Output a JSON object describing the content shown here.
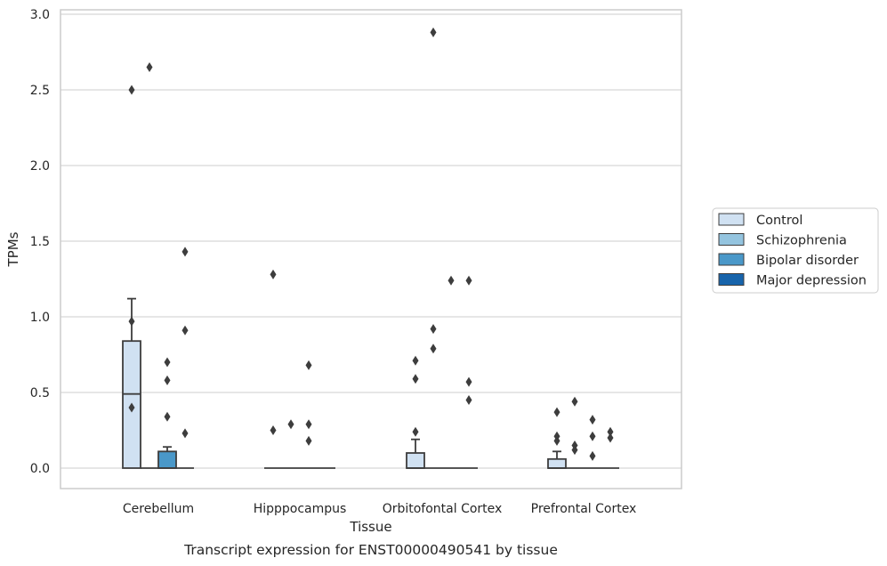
{
  "chart_data": {
    "type": "boxplot",
    "title": "",
    "caption": "Transcript expression for ENST00000490541 by tissue",
    "xlabel": "Tissue",
    "ylabel": "TPMs",
    "ylim": [
      -0.14,
      3.03
    ],
    "yticks": [
      0.0,
      0.5,
      1.0,
      1.5,
      2.0,
      2.5,
      3.0
    ],
    "ytick_labels": [
      "0.0",
      "0.5",
      "1.0",
      "1.5",
      "2.0",
      "2.5",
      "3.0"
    ],
    "grid": "horizontal",
    "legend_position": "right",
    "categories": [
      "Cerebellum",
      "Hipppocampus",
      "Orbitofontal Cortex",
      "Prefrontal Cortex"
    ],
    "series": [
      {
        "name": "Control",
        "color": "#d0e1f2",
        "boxes": [
          {
            "q1": 0.0,
            "median": 0.49,
            "q3": 0.84,
            "whisker_low": 0.0,
            "whisker_high": 1.12,
            "outliers": [
              2.5,
              0.97,
              0.4
            ]
          },
          {
            "q1": 0.0,
            "median": 0.0,
            "q3": 0.0,
            "whisker_low": 0.0,
            "whisker_high": 0.0,
            "outliers": [
              1.28,
              0.25
            ]
          },
          {
            "q1": 0.0,
            "median": 0.0,
            "q3": 0.1,
            "whisker_low": 0.0,
            "whisker_high": 0.19,
            "outliers": [
              0.71,
              0.59,
              0.24
            ]
          },
          {
            "q1": 0.0,
            "median": 0.0,
            "q3": 0.06,
            "whisker_low": 0.0,
            "whisker_high": 0.11,
            "outliers": [
              0.37,
              0.21,
              0.18
            ]
          }
        ]
      },
      {
        "name": "Schizophrenia",
        "color": "#94c4df",
        "boxes": [
          {
            "q1": 0.0,
            "median": 0.0,
            "q3": 0.0,
            "whisker_low": 0.0,
            "whisker_high": 0.0,
            "outliers": [
              2.65
            ]
          },
          {
            "q1": 0.0,
            "median": 0.0,
            "q3": 0.0,
            "whisker_low": 0.0,
            "whisker_high": 0.0,
            "outliers": [
              0.29
            ]
          },
          {
            "q1": 0.0,
            "median": 0.0,
            "q3": 0.0,
            "whisker_low": 0.0,
            "whisker_high": 0.0,
            "outliers": [
              2.88,
              0.92,
              0.79
            ]
          },
          {
            "q1": 0.0,
            "median": 0.0,
            "q3": 0.0,
            "whisker_low": 0.0,
            "whisker_high": 0.0,
            "outliers": [
              0.44,
              0.15,
              0.12
            ]
          }
        ]
      },
      {
        "name": "Bipolar disorder",
        "color": "#4a98c9",
        "boxes": [
          {
            "q1": 0.0,
            "median": 0.0,
            "q3": 0.11,
            "whisker_low": 0.0,
            "whisker_high": 0.14,
            "outliers": [
              0.7,
              0.58,
              0.34
            ]
          },
          {
            "q1": 0.0,
            "median": 0.0,
            "q3": 0.0,
            "whisker_low": 0.0,
            "whisker_high": 0.0,
            "outliers": [
              0.68,
              0.29,
              0.18
            ]
          },
          {
            "q1": 0.0,
            "median": 0.0,
            "q3": 0.0,
            "whisker_low": 0.0,
            "whisker_high": 0.0,
            "outliers": [
              1.24
            ]
          },
          {
            "q1": 0.0,
            "median": 0.0,
            "q3": 0.0,
            "whisker_low": 0.0,
            "whisker_high": 0.0,
            "outliers": [
              0.32,
              0.21,
              0.08
            ]
          }
        ]
      },
      {
        "name": "Major depression",
        "color": "#1764ab",
        "boxes": [
          {
            "q1": 0.0,
            "median": 0.0,
            "q3": 0.0,
            "whisker_low": 0.0,
            "whisker_high": 0.0,
            "outliers": [
              1.43,
              0.91,
              0.23
            ]
          },
          {
            "q1": 0.0,
            "median": 0.0,
            "q3": 0.0,
            "whisker_low": 0.0,
            "whisker_high": 0.0,
            "outliers": []
          },
          {
            "q1": 0.0,
            "median": 0.0,
            "q3": 0.0,
            "whisker_low": 0.0,
            "whisker_high": 0.0,
            "outliers": [
              1.24,
              0.57,
              0.45
            ]
          },
          {
            "q1": 0.0,
            "median": 0.0,
            "q3": 0.0,
            "whisker_low": 0.0,
            "whisker_high": 0.0,
            "outliers": [
              0.24,
              0.2
            ]
          }
        ]
      }
    ]
  }
}
